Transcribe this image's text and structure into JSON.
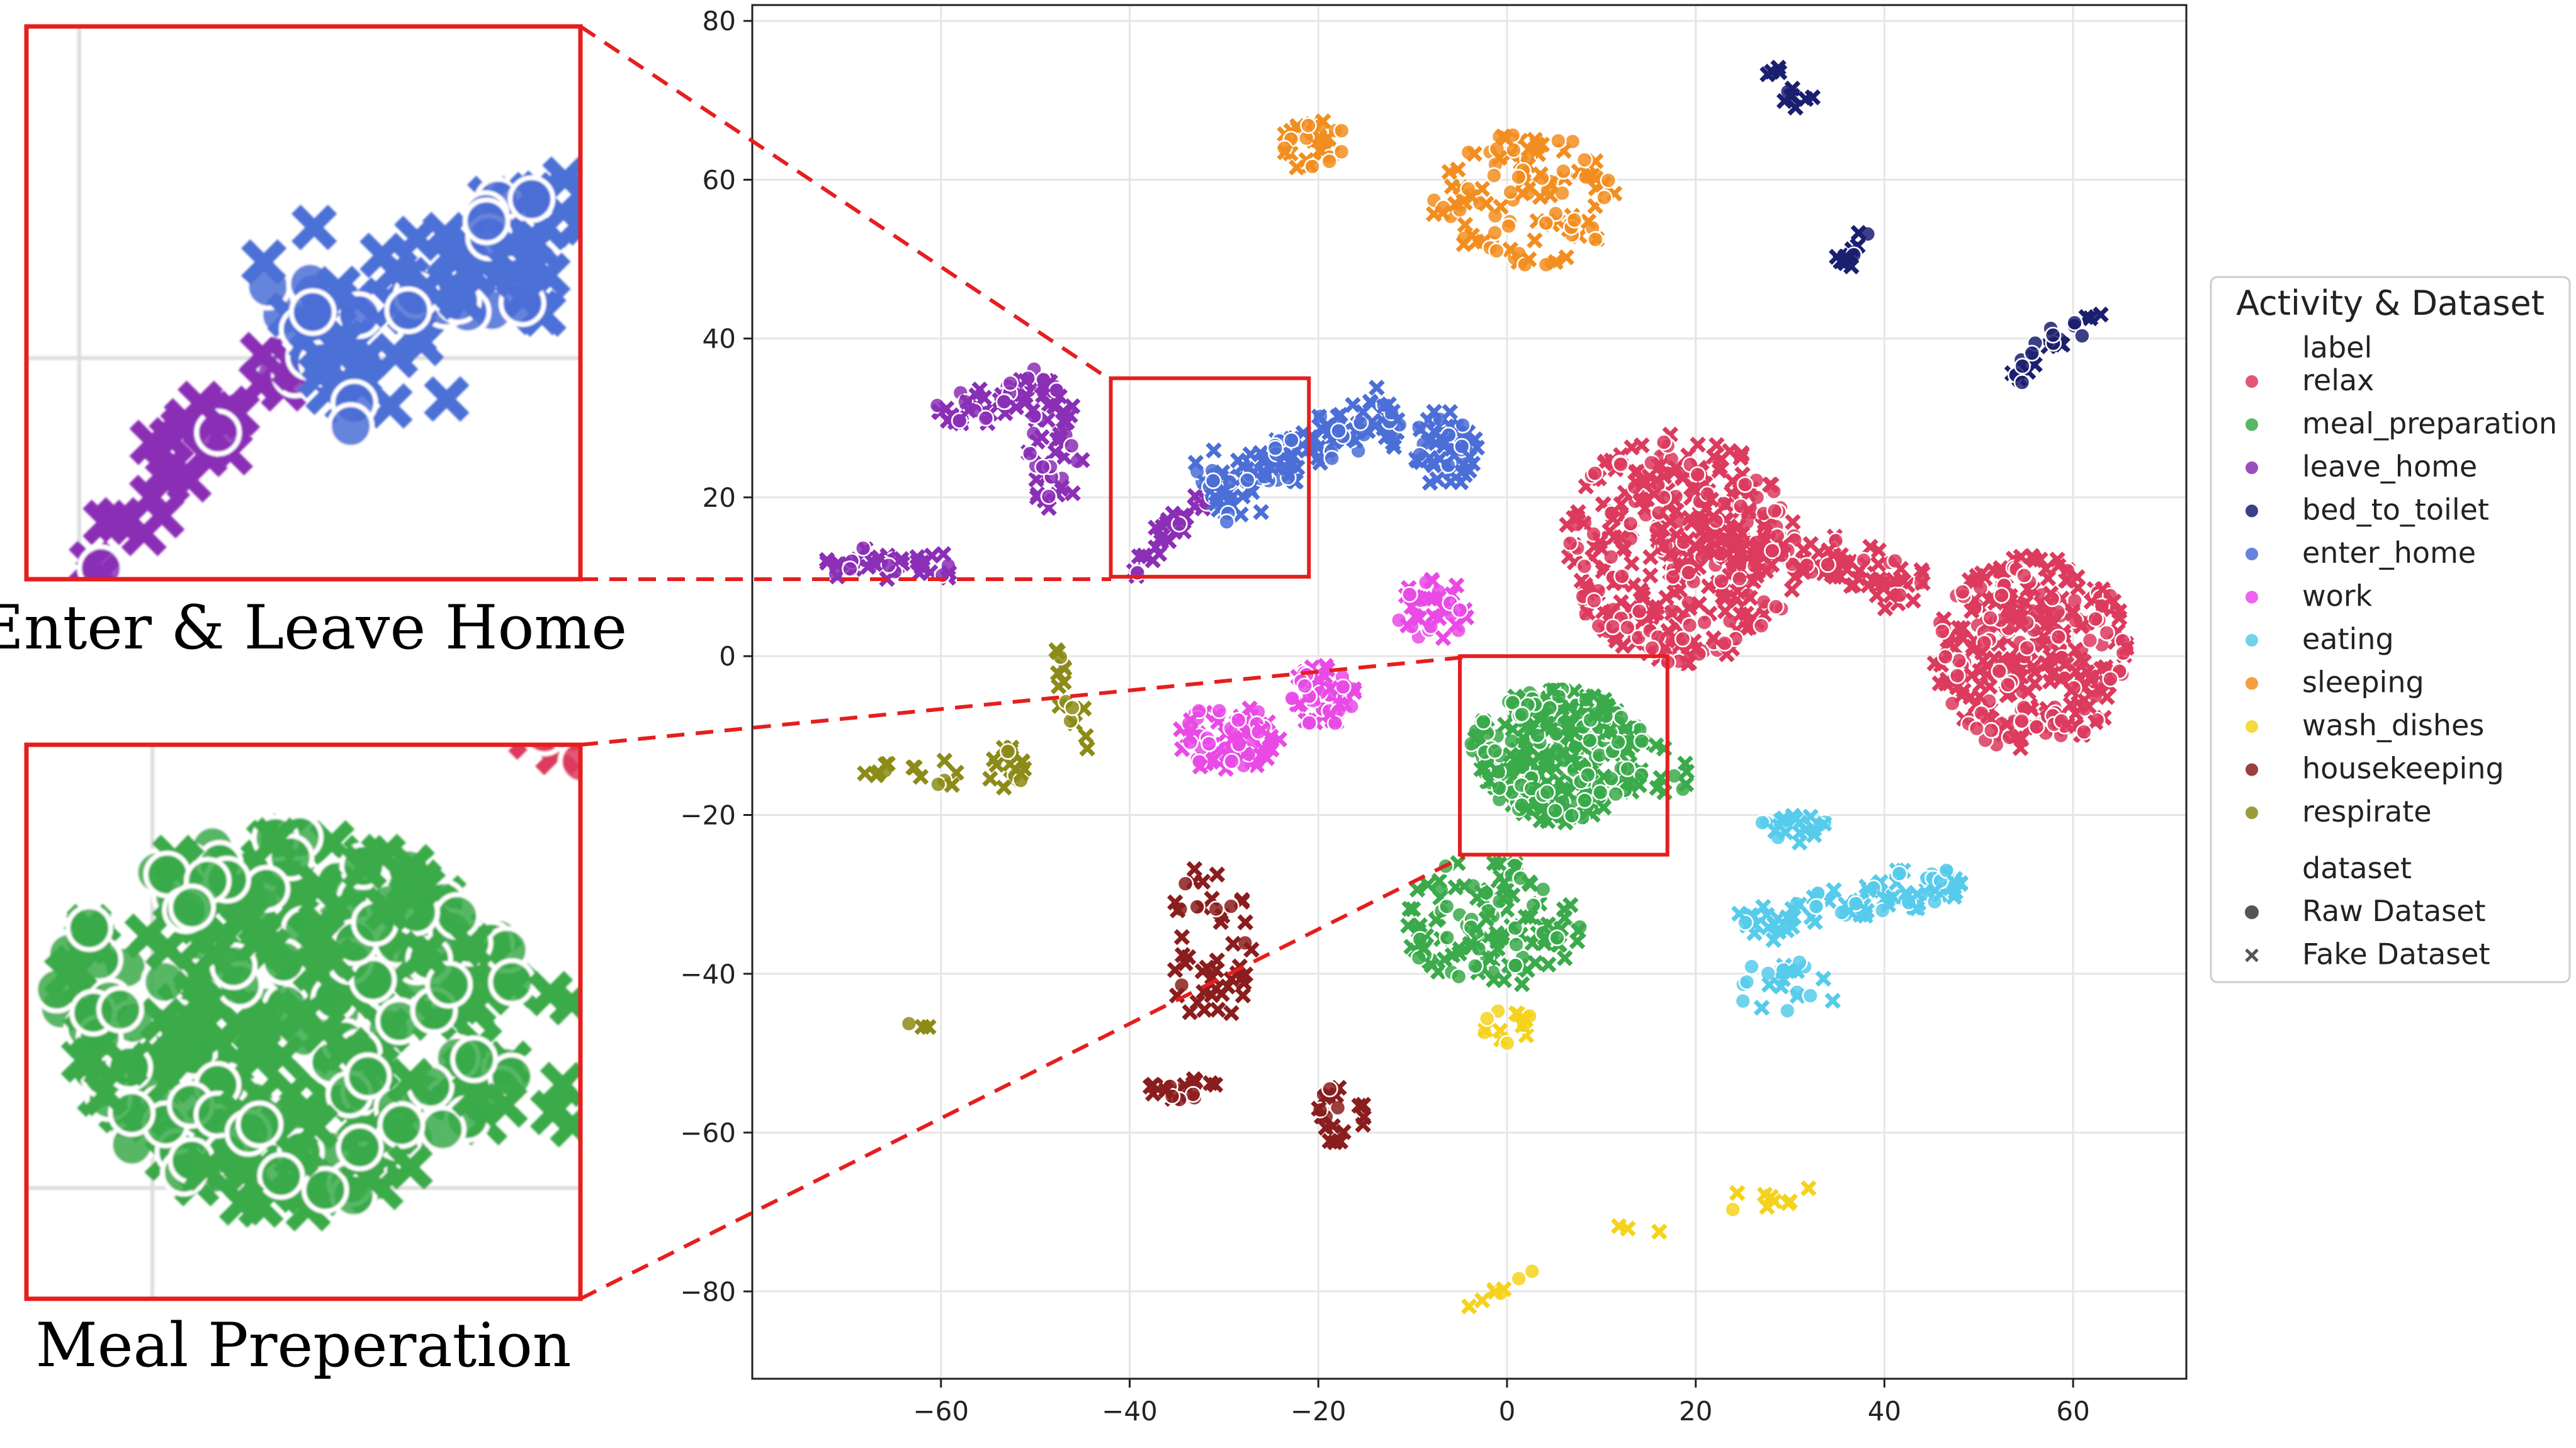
{
  "chart_data": {
    "type": "scatter",
    "title": "",
    "xlabel": "",
    "ylabel": "",
    "xlim": [
      -80,
      72
    ],
    "ylim": [
      -91,
      82
    ],
    "xticks": [
      -60,
      -40,
      -20,
      0,
      20,
      40,
      60
    ],
    "yticks": [
      80,
      60,
      40,
      20,
      0,
      -20,
      -40,
      -60,
      -80
    ],
    "xtick_labels": [
      "−60",
      "−40",
      "−20",
      "0",
      "20",
      "40",
      "60"
    ],
    "ytick_labels": [
      "80",
      "60",
      "40",
      "20",
      "0",
      "−20",
      "−40",
      "−60",
      "−80"
    ],
    "grid": true,
    "legend": {
      "placement": "right",
      "title": "Activity & Dataset",
      "label_header": "label",
      "dataset_header": "dataset",
      "entries": [
        {
          "label": "relax",
          "color": "#dc3b5e"
        },
        {
          "label": "meal_preparation",
          "color": "#3aaa4a"
        },
        {
          "label": "leave_home",
          "color": "#8b2fb6"
        },
        {
          "label": "bed_to_toilet",
          "color": "#1b1f6f"
        },
        {
          "label": "enter_home",
          "color": "#4b6fd6"
        },
        {
          "label": "work",
          "color": "#e94ae6"
        },
        {
          "label": "eating",
          "color": "#57cbeb"
        },
        {
          "label": "sleeping",
          "color": "#f28e20"
        },
        {
          "label": "wash_dishes",
          "color": "#f5d31c"
        },
        {
          "label": "housekeeping",
          "color": "#8a1d1d"
        },
        {
          "label": "respirate",
          "color": "#8c8b18"
        }
      ],
      "datasets": [
        {
          "label": "Raw Dataset",
          "marker": "circle"
        },
        {
          "label": "Fake Dataset",
          "marker": "x"
        }
      ]
    },
    "clusters": [
      {
        "label": "relax",
        "shape": "blob",
        "x": [
          6,
          31
        ],
        "y": [
          -1,
          28
        ],
        "n": 380,
        "frac_raw": 0.35
      },
      {
        "label": "relax",
        "shape": "band",
        "from": [
          18,
          16
        ],
        "to": [
          44,
          9
        ],
        "width": 3,
        "n": 120,
        "frac_raw": 0.3
      },
      {
        "label": "relax",
        "shape": "blob",
        "x": [
          45,
          66
        ],
        "y": [
          -12,
          13
        ],
        "n": 320,
        "frac_raw": 0.35
      },
      {
        "label": "meal_preparation",
        "shape": "blob",
        "x": [
          -4,
          15
        ],
        "y": [
          -21,
          -4
        ],
        "n": 340,
        "frac_raw": 0.45
      },
      {
        "label": "meal_preparation",
        "shape": "blob",
        "x": [
          -11,
          8
        ],
        "y": [
          -42,
          -25
        ],
        "n": 130,
        "frac_raw": 0.3
      },
      {
        "label": "meal_preparation",
        "shape": "blob",
        "x": [
          15,
          20
        ],
        "y": [
          -18,
          -10
        ],
        "n": 10,
        "frac_raw": 0.2
      },
      {
        "label": "leave_home",
        "shape": "band",
        "from": [
          -60,
          30
        ],
        "to": [
          -48,
          35
        ],
        "width": 2.5,
        "n": 55,
        "frac_raw": 0.4
      },
      {
        "label": "leave_home",
        "shape": "blob",
        "x": [
          -51,
          -45
        ],
        "y": [
          18,
          34
        ],
        "n": 50,
        "frac_raw": 0.3
      },
      {
        "label": "leave_home",
        "shape": "band",
        "from": [
          -73,
          12
        ],
        "to": [
          -59,
          11
        ],
        "width": 2,
        "n": 45,
        "frac_raw": 0.3
      },
      {
        "label": "leave_home",
        "shape": "band",
        "from": [
          -41,
          10
        ],
        "to": [
          -32,
          20
        ],
        "width": 2,
        "n": 30,
        "frac_raw": 0.3
      },
      {
        "label": "bed_to_toilet",
        "shape": "band",
        "from": [
          28,
          74
        ],
        "to": [
          32,
          69
        ],
        "width": 1.5,
        "n": 12,
        "frac_raw": 0.1
      },
      {
        "label": "bed_to_toilet",
        "shape": "band",
        "from": [
          35,
          49
        ],
        "to": [
          38,
          54
        ],
        "width": 1.5,
        "n": 12,
        "frac_raw": 0.2
      },
      {
        "label": "bed_to_toilet",
        "shape": "band",
        "from": [
          53,
          35
        ],
        "to": [
          63,
          43
        ],
        "width": 1.8,
        "n": 26,
        "frac_raw": 0.4
      },
      {
        "label": "enter_home",
        "shape": "band",
        "from": [
          -32,
          20
        ],
        "to": [
          -12,
          31
        ],
        "width": 4,
        "n": 150,
        "frac_raw": 0.3
      },
      {
        "label": "enter_home",
        "shape": "blob",
        "x": [
          -10,
          -3
        ],
        "y": [
          21,
          32
        ],
        "n": 55,
        "frac_raw": 0.25
      },
      {
        "label": "work",
        "shape": "blob",
        "x": [
          -35,
          -24
        ],
        "y": [
          -15,
          -6
        ],
        "n": 80,
        "frac_raw": 0.4
      },
      {
        "label": "work",
        "shape": "blob",
        "x": [
          -23,
          -16
        ],
        "y": [
          -9,
          -1
        ],
        "n": 60,
        "frac_raw": 0.4
      },
      {
        "label": "work",
        "shape": "blob",
        "x": [
          -12,
          -4
        ],
        "y": [
          2,
          10
        ],
        "n": 40,
        "frac_raw": 0.35
      },
      {
        "label": "eating",
        "shape": "band",
        "from": [
          25,
          -34
        ],
        "to": [
          48,
          -28
        ],
        "width": 3,
        "n": 90,
        "frac_raw": 0.3
      },
      {
        "label": "eating",
        "shape": "blob",
        "x": [
          26,
          35
        ],
        "y": [
          -24,
          -20
        ],
        "n": 20,
        "frac_raw": 0.2
      },
      {
        "label": "eating",
        "shape": "blob",
        "x": [
          24,
          36
        ],
        "y": [
          -45,
          -38
        ],
        "n": 22,
        "frac_raw": 0.5
      },
      {
        "label": "sleeping",
        "shape": "blob",
        "x": [
          -24,
          -17
        ],
        "y": [
          61,
          68
        ],
        "n": 35,
        "frac_raw": 0.3
      },
      {
        "label": "sleeping",
        "shape": "blob",
        "x": [
          -8,
          12
        ],
        "y": [
          49,
          66
        ],
        "n": 120,
        "frac_raw": 0.4
      },
      {
        "label": "wash_dishes",
        "shape": "band",
        "from": [
          -4,
          -82
        ],
        "to": [
          4,
          -77
        ],
        "width": 1.5,
        "n": 8,
        "frac_raw": 0.1
      },
      {
        "label": "wash_dishes",
        "shape": "band",
        "from": [
          12,
          -73
        ],
        "to": [
          32,
          -67
        ],
        "width": 1.5,
        "n": 12,
        "frac_raw": 0.1
      },
      {
        "label": "wash_dishes",
        "shape": "blob",
        "x": [
          -3,
          3
        ],
        "y": [
          -49,
          -44
        ],
        "n": 15,
        "frac_raw": 0.4
      },
      {
        "label": "housekeeping",
        "shape": "blob",
        "x": [
          -36,
          -27
        ],
        "y": [
          -47,
          -26
        ],
        "n": 50,
        "frac_raw": 0.2
      },
      {
        "label": "housekeeping",
        "shape": "blob",
        "x": [
          -38,
          -30
        ],
        "y": [
          -56,
          -53
        ],
        "n": 20,
        "frac_raw": 0.2
      },
      {
        "label": "housekeeping",
        "shape": "blob",
        "x": [
          -20,
          -15
        ],
        "y": [
          -62,
          -53
        ],
        "n": 22,
        "frac_raw": 0.2
      },
      {
        "label": "respirate",
        "shape": "band",
        "from": [
          -68,
          -14
        ],
        "to": [
          -58,
          -15
        ],
        "width": 1.5,
        "n": 14,
        "frac_raw": 0.2
      },
      {
        "label": "respirate",
        "shape": "blob",
        "x": [
          -55,
          -51
        ],
        "y": [
          -18,
          -11
        ],
        "n": 18,
        "frac_raw": 0.2
      },
      {
        "label": "respirate",
        "shape": "band",
        "from": [
          -48,
          1
        ],
        "to": [
          -45,
          -13
        ],
        "width": 1.2,
        "n": 16,
        "frac_raw": 0.2
      },
      {
        "label": "respirate",
        "shape": "blob",
        "x": [
          -64,
          -60
        ],
        "y": [
          -47,
          -46
        ],
        "n": 3,
        "frac_raw": 0.5
      }
    ],
    "insets": [
      {
        "caption": "Enter & Leave Home",
        "region_x": [
          -42,
          -21
        ],
        "region_y": [
          10,
          35
        ]
      },
      {
        "caption": "Meal Preperation",
        "region_x": [
          -5,
          17
        ],
        "region_y": [
          -25,
          0
        ]
      }
    ]
  }
}
